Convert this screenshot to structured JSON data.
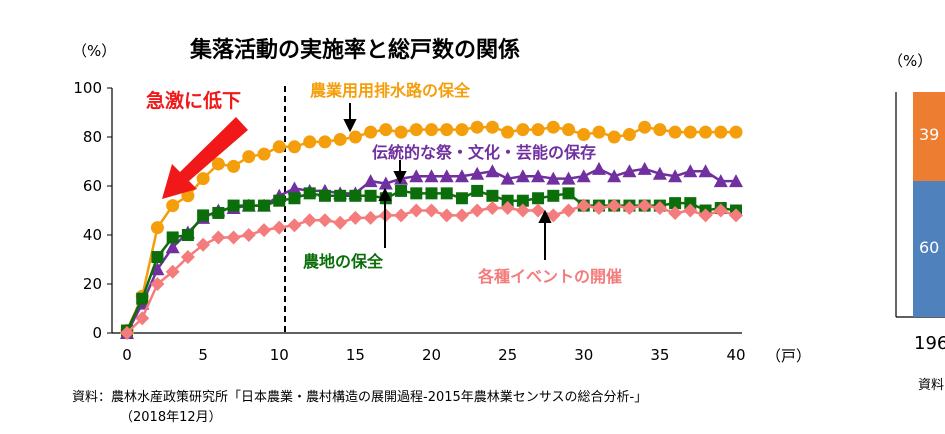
{
  "chart_data": [
    {
      "type": "line",
      "title": "集落活動の実施率と総戸数の関係",
      "ylabel": "（%）",
      "xlabel": "（戸）",
      "xlim": [
        0,
        40
      ],
      "ylim": [
        0,
        100
      ],
      "xticks": [
        0,
        5,
        10,
        15,
        20,
        25,
        30,
        35,
        40
      ],
      "yticks": [
        0,
        20,
        40,
        60,
        80,
        100
      ],
      "grid": false,
      "reference_line_x": 10,
      "x": [
        0,
        1,
        2,
        3,
        4,
        5,
        6,
        7,
        8,
        9,
        10,
        11,
        12,
        13,
        14,
        15,
        16,
        17,
        18,
        19,
        20,
        21,
        22,
        23,
        24,
        25,
        26,
        27,
        28,
        29,
        30,
        31,
        32,
        33,
        34,
        35,
        36,
        37,
        38,
        39,
        40
      ],
      "series": [
        {
          "name": "農業用用排水路の保全",
          "color": "#F59E0B",
          "marker": "circle",
          "values": [
            1,
            15,
            43,
            52,
            56,
            63,
            69,
            68,
            72,
            73,
            76,
            76,
            78,
            78,
            79,
            80,
            82,
            83,
            82,
            83,
            83,
            83,
            83,
            84,
            84,
            82,
            83,
            83,
            84,
            83,
            81,
            82,
            80,
            81,
            84,
            83,
            82,
            82,
            82,
            82,
            82
          ]
        },
        {
          "name": "伝統的な祭・文化・芸能の保存",
          "color": "#7030A0",
          "marker": "triangle",
          "values": [
            0,
            12,
            26,
            35,
            41,
            47,
            50,
            51,
            52,
            52,
            56,
            59,
            58,
            58,
            57,
            57,
            62,
            61,
            63,
            64,
            64,
            64,
            64,
            65,
            66,
            63,
            64,
            64,
            63,
            63,
            64,
            67,
            64,
            66,
            67,
            65,
            64,
            66,
            66,
            62,
            62
          ]
        },
        {
          "name": "農地の保全",
          "color": "#0B6E0B",
          "marker": "square",
          "values": [
            1,
            14,
            31,
            39,
            40,
            48,
            49,
            52,
            52,
            52,
            54,
            55,
            57,
            56,
            56,
            56,
            56,
            55,
            58,
            57,
            57,
            57,
            55,
            58,
            56,
            54,
            54,
            55,
            56,
            57,
            52,
            52,
            52,
            52,
            52,
            52,
            53,
            53,
            50,
            51,
            50
          ]
        },
        {
          "name": "各種イベントの開催",
          "color": "#F47C7C",
          "marker": "diamond",
          "values": [
            0,
            6,
            20,
            25,
            31,
            36,
            39,
            39,
            40,
            42,
            43,
            44,
            46,
            46,
            45,
            47,
            47,
            48,
            48,
            50,
            50,
            48,
            48,
            50,
            51,
            51,
            50,
            50,
            48,
            50,
            52,
            51,
            52,
            51,
            52,
            51,
            49,
            50,
            48,
            50,
            48
          ]
        }
      ],
      "annotations": {
        "drop": "急激に低下"
      },
      "source": "資料：農林水産政策研究所「日本農業・農村構造の展開過程-2015年農林業センサスの総合分析-」",
      "source_date": "（2018年12月）"
    },
    {
      "type": "bar",
      "ylabel": "（%）",
      "categories": [
        "196"
      ],
      "series": [
        {
          "color": "#ED7D31",
          "values": [
            39
          ]
        },
        {
          "color": "#4F81BD",
          "values": [
            60
          ]
        }
      ],
      "source": "資料"
    }
  ]
}
